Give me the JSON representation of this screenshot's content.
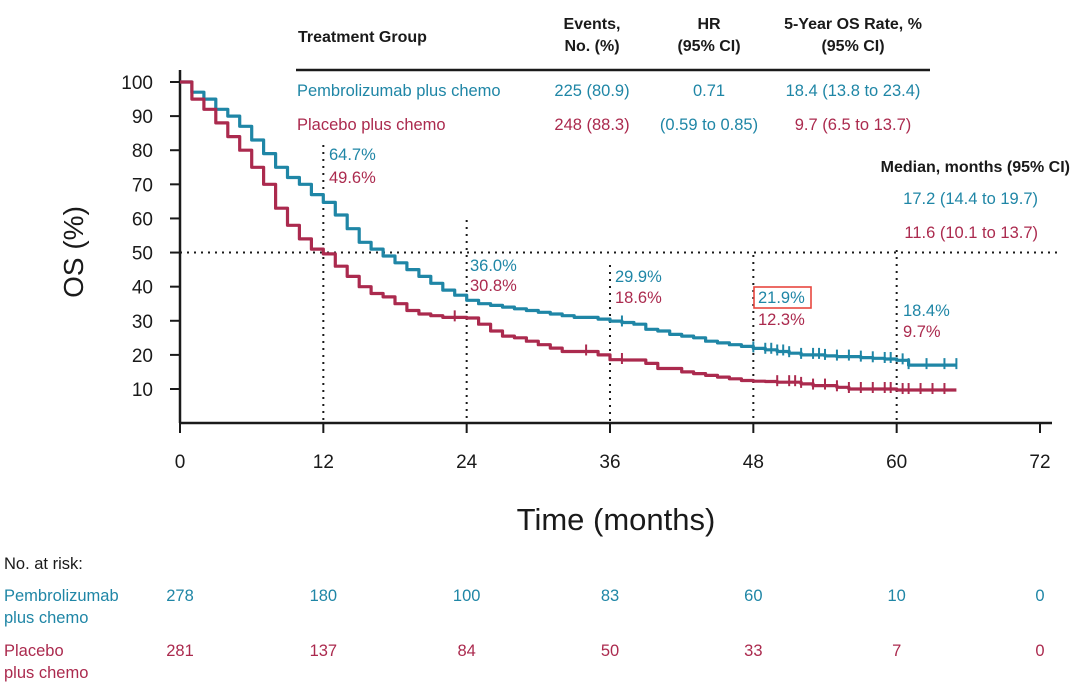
{
  "colors": {
    "pembro": "#1f86a6",
    "placebo": "#ab2a4e",
    "text": "#1a1a1a",
    "highlight": "#e8473f"
  },
  "table": {
    "headers": {
      "group": "Treatment Group",
      "events_line1": "Events,",
      "events_line2": "No. (%)",
      "hr_line1": "HR",
      "hr_line2": "(95% CI)",
      "os_line1": "5-Year OS Rate, %",
      "os_line2": "(95% CI)"
    },
    "rows": [
      {
        "group": "Pembrolizumab plus chemo",
        "events": "225 (80.9)",
        "hr": "0.71",
        "os_rate": "18.4 (13.8 to 23.4)"
      },
      {
        "group": "Placebo plus chemo",
        "events": "248 (88.3)",
        "hr": "(0.59 to 0.85)",
        "os_rate": "9.7 (6.5 to 13.7)"
      }
    ]
  },
  "median": {
    "title": "Median, months (95% CI)",
    "pembro": "17.2 (14.4 to 19.7)",
    "placebo": "11.6 (10.1 to 13.7)"
  },
  "landmarks": [
    {
      "month": 12,
      "pembro": "64.7%",
      "placebo": "49.6%"
    },
    {
      "month": 24,
      "pembro": "36.0%",
      "placebo": "30.8%"
    },
    {
      "month": 36,
      "pembro": "29.9%",
      "placebo": "18.6%"
    },
    {
      "month": 48,
      "pembro": "21.9%",
      "placebo": "12.3%",
      "highlight": true
    },
    {
      "month": 60,
      "pembro": "18.4%",
      "placebo": "9.7%"
    }
  ],
  "risk_table": {
    "title": "No. at risk:",
    "pembro_label_1": "Pembrolizumab",
    "pembro_label_2": "plus chemo",
    "placebo_label_1": "Placebo",
    "placebo_label_2": "plus chemo",
    "pembro": [
      "278",
      "180",
      "100",
      "83",
      "60",
      "10",
      "0"
    ],
    "placebo": [
      "281",
      "137",
      "84",
      "50",
      "33",
      "7",
      "0"
    ]
  },
  "chart_data": {
    "type": "line",
    "title": "",
    "xlabel": "Time (months)",
    "ylabel": "OS (%)",
    "xlim": [
      0,
      72
    ],
    "ylim": [
      0,
      100
    ],
    "x_ticks": [
      "0",
      "12",
      "24",
      "36",
      "48",
      "60",
      "72"
    ],
    "y_ticks": [
      "10",
      "20",
      "30",
      "40",
      "50",
      "60",
      "70",
      "80",
      "90",
      "100"
    ],
    "reference_line_y": 50,
    "series": [
      {
        "name": "Pembrolizumab plus chemo",
        "x": [
          0,
          1,
          2,
          3,
          4,
          5,
          6,
          7,
          8,
          9,
          10,
          11,
          12,
          13,
          14,
          15,
          16,
          17,
          18,
          19,
          20,
          21,
          22,
          23,
          24,
          25,
          26,
          27,
          28,
          29,
          30,
          31,
          32,
          33,
          34,
          35,
          36,
          37,
          38,
          39,
          40,
          41,
          42,
          43,
          44,
          45,
          46,
          47,
          48,
          49,
          50,
          51,
          52,
          53,
          54,
          55,
          56,
          57,
          58,
          59,
          60,
          61,
          62,
          63,
          64,
          65
        ],
        "y": [
          100,
          97,
          95,
          92,
          90,
          87,
          83,
          79,
          75,
          72,
          70,
          67,
          64.7,
          61,
          57,
          53,
          51,
          49,
          47,
          45,
          43,
          41,
          39,
          37.5,
          36,
          35,
          34.5,
          34,
          33.5,
          33,
          32.5,
          32,
          31.5,
          31,
          31,
          30.5,
          29.9,
          29.5,
          29,
          27.5,
          27,
          26,
          25.5,
          25,
          24,
          23.5,
          23,
          22.5,
          21.9,
          21.5,
          21,
          20.5,
          20,
          20,
          19.7,
          19.5,
          19.5,
          19.2,
          19,
          18.8,
          18.4,
          17,
          17,
          17,
          17,
          17
        ],
        "censor_x": [
          37,
          48,
          49,
          49.5,
          50,
          50.5,
          51,
          52,
          53,
          53.5,
          54,
          55,
          56,
          57,
          58,
          59,
          59.5,
          60.5,
          61,
          62.5,
          64,
          65
        ]
      },
      {
        "name": "Placebo plus chemo",
        "x": [
          0,
          1,
          2,
          3,
          4,
          5,
          6,
          7,
          8,
          9,
          10,
          11,
          12,
          13,
          14,
          15,
          16,
          17,
          18,
          19,
          20,
          21,
          22,
          23,
          24,
          25,
          26,
          27,
          28,
          29,
          30,
          31,
          32,
          33,
          34,
          35,
          36,
          37,
          38,
          39,
          40,
          41,
          42,
          43,
          44,
          45,
          46,
          47,
          48,
          49,
          50,
          51,
          52,
          53,
          54,
          55,
          56,
          57,
          58,
          59,
          60,
          61,
          62,
          63,
          64,
          65
        ],
        "y": [
          100,
          95,
          92,
          88,
          84,
          80,
          75,
          70,
          63,
          58,
          54,
          51,
          49.6,
          46,
          43,
          40,
          38,
          37,
          35,
          33,
          32,
          31.5,
          31,
          31,
          30.8,
          29,
          27,
          25.5,
          25,
          24,
          23,
          22,
          21,
          21,
          21,
          20,
          18.6,
          18.5,
          18.5,
          17.5,
          16,
          16,
          15,
          14.5,
          14,
          13.5,
          13,
          12.5,
          12.3,
          12.2,
          12,
          12,
          11.5,
          11,
          11,
          10.5,
          10,
          10,
          10,
          10,
          9.7,
          9.7,
          9.7,
          9.7,
          9.7,
          9.7
        ],
        "censor_x": [
          23,
          34,
          37,
          50,
          51,
          51.5,
          52,
          53,
          54,
          55,
          56,
          57,
          58,
          59,
          59.5,
          60.5,
          61,
          62,
          63,
          64
        ]
      }
    ]
  }
}
